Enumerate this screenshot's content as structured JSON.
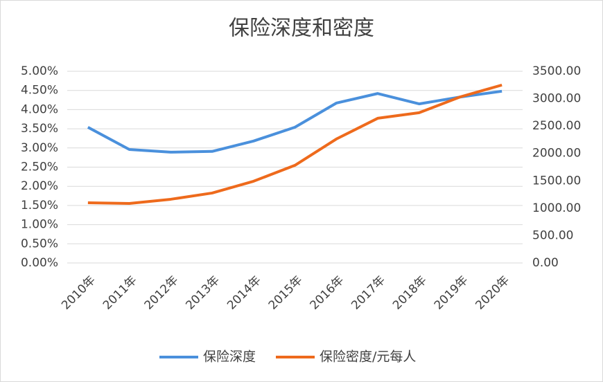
{
  "chart_data": {
    "type": "line",
    "title": "保险深度和密度",
    "categories": [
      "2010年",
      "2011年",
      "2012年",
      "2013年",
      "2014年",
      "2015年",
      "2016年",
      "2017年",
      "2018年",
      "2019年",
      "2020年"
    ],
    "series": [
      {
        "name": "保险深度",
        "color": "#4a90dc",
        "values": [
          3.54,
          2.96,
          2.89,
          2.91,
          3.18,
          3.54,
          4.17,
          4.42,
          4.15,
          4.33,
          4.48
        ]
      },
      {
        "name": "保险密度/元每人",
        "color": "#ee6a1c",
        "axis": "y2",
        "values": [
          1100,
          1087,
          1163,
          1277,
          1492,
          1783,
          2263,
          2642,
          2743,
          3034,
          3249
        ]
      }
    ],
    "ylim": [
      0,
      5
    ],
    "yticks": [
      {
        "value": 0,
        "label": "0.00%"
      },
      {
        "value": 0.5,
        "label": "0.50%"
      },
      {
        "value": 1,
        "label": "1.00%"
      },
      {
        "value": 1.5,
        "label": "1.50%"
      },
      {
        "value": 2,
        "label": "2.00%"
      },
      {
        "value": 2.5,
        "label": "2.50%"
      },
      {
        "value": 3,
        "label": "3.00%"
      },
      {
        "value": 3.5,
        "label": "3.50%"
      },
      {
        "value": 4,
        "label": "4.00%"
      },
      {
        "value": 4.5,
        "label": "4.50%"
      },
      {
        "value": 5,
        "label": "5.00%"
      }
    ],
    "y2lim": [
      0,
      3500
    ],
    "y2ticks": [
      {
        "value": 0,
        "label": "0.00"
      },
      {
        "value": 500,
        "label": "500.00"
      },
      {
        "value": 1000,
        "label": "1000.00"
      },
      {
        "value": 1500,
        "label": "1500.00"
      },
      {
        "value": 2000,
        "label": "2000.00"
      },
      {
        "value": 2500,
        "label": "2500.00"
      },
      {
        "value": 3000,
        "label": "3000.00"
      },
      {
        "value": 3500,
        "label": "3500.00"
      }
    ],
    "grid": true
  }
}
